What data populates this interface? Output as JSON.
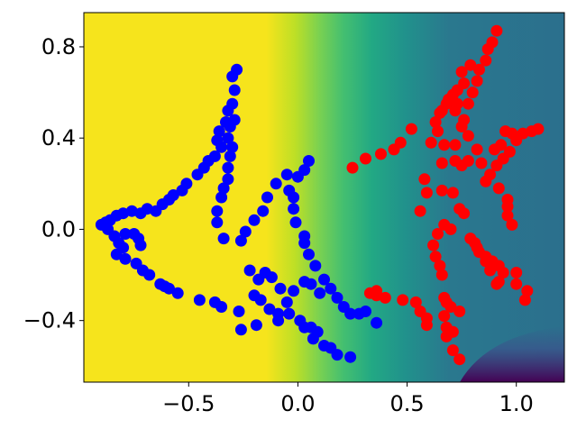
{
  "chart_data": {
    "type": "scatter",
    "title": "",
    "xlabel": "",
    "ylabel": "",
    "xlim": [
      -0.98,
      1.22
    ],
    "ylim": [
      -0.67,
      0.95
    ],
    "x_ticks": [
      -0.5,
      0.0,
      0.5,
      1.0
    ],
    "x_tick_labels": [
      "−0.5",
      "0.0",
      "0.5",
      "1.0"
    ],
    "y_ticks": [
      -0.4,
      0.0,
      0.4,
      0.8
    ],
    "y_tick_labels": [
      "−0.4",
      "0.0",
      "0.4",
      "0.8"
    ],
    "grid": false,
    "legend": "none",
    "background": {
      "type": "filled-contour",
      "colormap": "viridis",
      "description_levels": "decision function, yellow on left to dark purple on right"
    },
    "series": [
      {
        "color": "#0000ff",
        "points": [
          [
            -0.28,
            0.7
          ],
          [
            -0.3,
            0.67
          ],
          [
            -0.29,
            0.61
          ],
          [
            -0.3,
            0.55
          ],
          [
            -0.32,
            0.52
          ],
          [
            -0.29,
            0.48
          ],
          [
            -0.33,
            0.47
          ],
          [
            -0.36,
            0.43
          ],
          [
            -0.37,
            0.39
          ],
          [
            -0.35,
            0.36
          ],
          [
            -0.38,
            0.32
          ],
          [
            -0.41,
            0.3
          ],
          [
            -0.43,
            0.27
          ],
          [
            -0.46,
            0.24
          ],
          [
            -0.51,
            0.2
          ],
          [
            -0.53,
            0.17
          ],
          [
            -0.57,
            0.15
          ],
          [
            -0.59,
            0.13
          ],
          [
            -0.62,
            0.11
          ],
          [
            -0.65,
            0.08
          ],
          [
            -0.69,
            0.09
          ],
          [
            -0.72,
            0.07
          ],
          [
            -0.76,
            0.08
          ],
          [
            -0.8,
            0.07
          ],
          [
            -0.83,
            0.06
          ],
          [
            -0.86,
            0.04
          ],
          [
            -0.88,
            0.03
          ],
          [
            -0.9,
            0.02
          ],
          [
            -0.87,
            0.0
          ],
          [
            -0.84,
            -0.03
          ],
          [
            -0.82,
            -0.06
          ],
          [
            -0.79,
            -0.02
          ],
          [
            -0.75,
            -0.02
          ],
          [
            -0.73,
            -0.04
          ],
          [
            -0.72,
            -0.07
          ],
          [
            -0.8,
            -0.08
          ],
          [
            -0.83,
            -0.11
          ],
          [
            -0.79,
            -0.13
          ],
          [
            -0.74,
            -0.15
          ],
          [
            -0.71,
            -0.18
          ],
          [
            -0.68,
            -0.2
          ],
          [
            -0.63,
            -0.24
          ],
          [
            -0.61,
            -0.25
          ],
          [
            -0.59,
            -0.26
          ],
          [
            -0.55,
            -0.28
          ],
          [
            -0.45,
            -0.31
          ],
          [
            -0.38,
            -0.32
          ],
          [
            -0.35,
            -0.34
          ],
          [
            -0.27,
            -0.36
          ],
          [
            -0.26,
            -0.44
          ],
          [
            -0.31,
            0.45
          ],
          [
            -0.32,
            0.4
          ],
          [
            -0.3,
            0.36
          ],
          [
            -0.31,
            0.32
          ],
          [
            -0.32,
            0.27
          ],
          [
            -0.32,
            0.22
          ],
          [
            -0.34,
            0.18
          ],
          [
            -0.35,
            0.14
          ],
          [
            -0.37,
            0.08
          ],
          [
            -0.37,
            0.03
          ],
          [
            -0.34,
            -0.04
          ],
          [
            -0.26,
            -0.05
          ],
          [
            -0.24,
            -0.01
          ],
          [
            -0.2,
            0.04
          ],
          [
            -0.16,
            0.08
          ],
          [
            -0.14,
            0.14
          ],
          [
            -0.1,
            0.2
          ],
          [
            -0.05,
            0.24
          ],
          [
            -0.04,
            0.17
          ],
          [
            0.0,
            0.23
          ],
          [
            0.03,
            0.26
          ],
          [
            0.05,
            0.3
          ],
          [
            -0.02,
            0.14
          ],
          [
            -0.02,
            0.09
          ],
          [
            -0.01,
            0.03
          ],
          [
            0.03,
            -0.03
          ],
          [
            0.03,
            -0.06
          ],
          [
            0.05,
            -0.11
          ],
          [
            0.08,
            -0.16
          ],
          [
            0.12,
            -0.22
          ],
          [
            0.15,
            -0.26
          ],
          [
            0.18,
            -0.3
          ],
          [
            0.21,
            -0.34
          ],
          [
            0.24,
            -0.37
          ],
          [
            0.28,
            -0.37
          ],
          [
            0.31,
            -0.36
          ],
          [
            0.36,
            -0.41
          ],
          [
            0.1,
            -0.28
          ],
          [
            0.06,
            -0.24
          ],
          [
            0.03,
            -0.23
          ],
          [
            -0.02,
            -0.27
          ],
          [
            -0.05,
            -0.32
          ],
          [
            -0.08,
            -0.26
          ],
          [
            -0.12,
            -0.21
          ],
          [
            -0.15,
            -0.19
          ],
          [
            -0.18,
            -0.22
          ],
          [
            -0.22,
            -0.18
          ],
          [
            -0.2,
            -0.29
          ],
          [
            -0.17,
            -0.31
          ],
          [
            -0.13,
            -0.35
          ],
          [
            -0.09,
            -0.37
          ],
          [
            -0.04,
            -0.37
          ],
          [
            0.01,
            -0.4
          ],
          [
            0.03,
            -0.43
          ],
          [
            0.07,
            -0.48
          ],
          [
            0.12,
            -0.51
          ],
          [
            0.15,
            -0.52
          ],
          [
            0.18,
            -0.55
          ],
          [
            0.24,
            -0.56
          ],
          [
            0.09,
            -0.45
          ],
          [
            0.06,
            -0.43
          ],
          [
            -0.09,
            -0.4
          ],
          [
            -0.19,
            -0.42
          ]
        ]
      },
      {
        "color": "#ff0000",
        "points": [
          [
            0.91,
            0.87
          ],
          [
            0.89,
            0.82
          ],
          [
            0.87,
            0.79
          ],
          [
            0.86,
            0.74
          ],
          [
            0.83,
            0.7
          ],
          [
            0.79,
            0.72
          ],
          [
            0.75,
            0.69
          ],
          [
            0.76,
            0.64
          ],
          [
            0.73,
            0.61
          ],
          [
            0.71,
            0.59
          ],
          [
            0.69,
            0.57
          ],
          [
            0.66,
            0.52
          ],
          [
            0.65,
            0.51
          ],
          [
            0.63,
            0.47
          ],
          [
            0.64,
            0.43
          ],
          [
            0.61,
            0.38
          ],
          [
            0.67,
            0.37
          ],
          [
            0.72,
            0.37
          ],
          [
            0.78,
            0.41
          ],
          [
            0.75,
            0.45
          ],
          [
            0.72,
            0.52
          ],
          [
            0.68,
            0.55
          ],
          [
            0.73,
            0.55
          ],
          [
            0.76,
            0.48
          ],
          [
            0.78,
            0.55
          ],
          [
            0.8,
            0.6
          ],
          [
            0.82,
            0.65
          ],
          [
            0.9,
            0.35
          ],
          [
            0.93,
            0.37
          ],
          [
            0.95,
            0.43
          ],
          [
            0.98,
            0.42
          ],
          [
            1.0,
            0.39
          ],
          [
            1.03,
            0.42
          ],
          [
            1.07,
            0.43
          ],
          [
            1.1,
            0.44
          ],
          [
            0.97,
            0.34
          ],
          [
            0.94,
            0.31
          ],
          [
            0.91,
            0.28
          ],
          [
            0.88,
            0.24
          ],
          [
            0.84,
            0.29
          ],
          [
            0.82,
            0.35
          ],
          [
            0.78,
            0.3
          ],
          [
            0.75,
            0.28
          ],
          [
            0.72,
            0.3
          ],
          [
            0.66,
            0.29
          ],
          [
            0.58,
            0.22
          ],
          [
            0.59,
            0.16
          ],
          [
            0.56,
            0.08
          ],
          [
            0.66,
            0.17
          ],
          [
            0.71,
            0.16
          ],
          [
            0.74,
            0.09
          ],
          [
            0.76,
            0.07
          ],
          [
            0.7,
            0.0
          ],
          [
            0.67,
            0.02
          ],
          [
            0.64,
            -0.02
          ],
          [
            0.62,
            -0.07
          ],
          [
            0.63,
            -0.12
          ],
          [
            0.65,
            -0.16
          ],
          [
            0.66,
            -0.2
          ],
          [
            0.67,
            -0.3
          ],
          [
            0.68,
            -0.32
          ],
          [
            0.67,
            -0.38
          ],
          [
            0.68,
            -0.43
          ],
          [
            0.68,
            -0.47
          ],
          [
            0.71,
            -0.53
          ],
          [
            0.74,
            -0.57
          ],
          [
            0.71,
            -0.45
          ],
          [
            0.7,
            -0.34
          ],
          [
            0.74,
            -0.36
          ],
          [
            0.79,
            -0.04
          ],
          [
            0.81,
            -0.06
          ],
          [
            0.82,
            -0.08
          ],
          [
            0.83,
            -0.1
          ],
          [
            0.86,
            -0.12
          ],
          [
            0.89,
            -0.14
          ],
          [
            0.92,
            -0.16
          ],
          [
            0.94,
            -0.19
          ],
          [
            0.92,
            -0.23
          ],
          [
            1.0,
            -0.19
          ],
          [
            1.05,
            -0.27
          ],
          [
            1.04,
            -0.31
          ],
          [
            1.0,
            -0.24
          ],
          [
            0.91,
            -0.24
          ],
          [
            0.88,
            -0.18
          ],
          [
            0.86,
            -0.14
          ],
          [
            0.98,
            0.02
          ],
          [
            0.96,
            0.06
          ],
          [
            0.96,
            0.1
          ],
          [
            0.96,
            0.13
          ],
          [
            0.92,
            0.18
          ],
          [
            0.86,
            0.21
          ],
          [
            0.54,
            -0.32
          ],
          [
            0.56,
            -0.36
          ],
          [
            0.59,
            -0.39
          ],
          [
            0.59,
            -0.42
          ],
          [
            0.48,
            -0.31
          ],
          [
            0.4,
            -0.3
          ],
          [
            0.36,
            -0.29
          ],
          [
            0.33,
            -0.28
          ],
          [
            0.36,
            -0.27
          ],
          [
            0.25,
            0.27
          ],
          [
            0.31,
            0.31
          ],
          [
            0.38,
            0.33
          ],
          [
            0.44,
            0.35
          ],
          [
            0.47,
            0.38
          ],
          [
            0.52,
            0.44
          ]
        ]
      }
    ]
  }
}
